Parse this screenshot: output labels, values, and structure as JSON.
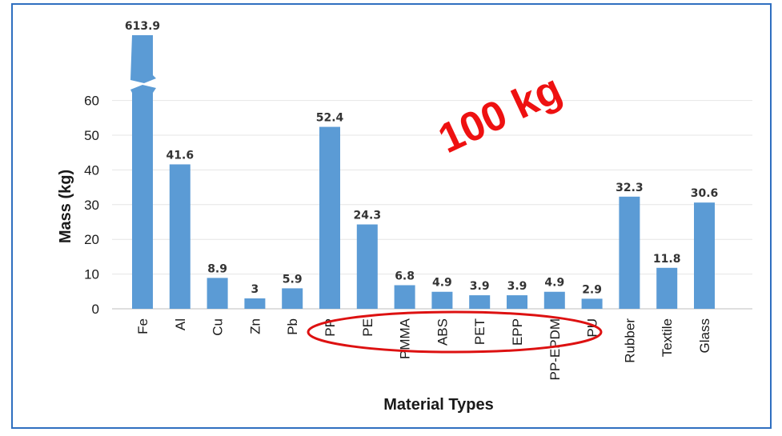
{
  "chart_data": {
    "type": "bar",
    "categories": [
      "Fe",
      "Al",
      "Cu",
      "Zn",
      "Pb",
      "PP",
      "PE",
      "PMMA",
      "ABS",
      "PET",
      "EPP",
      "PP-EPDM",
      "PU",
      "Rubber",
      "Textile",
      "Glass"
    ],
    "values": [
      613.9,
      41.6,
      8.9,
      3,
      5.9,
      52.4,
      24.3,
      6.8,
      4.9,
      3.9,
      3.9,
      4.9,
      2.9,
      32.3,
      11.8,
      30.6
    ],
    "value_labels": [
      "613.9",
      "41.6",
      "8.9",
      "3",
      "5.9",
      "52.4",
      "24.3",
      "6.8",
      "4.9",
      "3.9",
      "3.9",
      "4.9",
      "2.9",
      "32.3",
      "11.8",
      "30.6"
    ],
    "xlabel": "Material Types",
    "ylabel": "Mass (kg)",
    "ylim": [
      0,
      60
    ],
    "yticks": [
      "0",
      "10",
      "20",
      "30",
      "40",
      "50",
      "60"
    ],
    "grid": true,
    "broken_axis_category": "Fe",
    "bar_color": "#5b9bd5",
    "annotation": {
      "text": "100 kg",
      "color": "#ee1111",
      "encircled_categories": [
        "PP",
        "PE",
        "PMMA",
        "ABS",
        "PET",
        "EPP",
        "PP-EPDM",
        "PU"
      ]
    }
  }
}
